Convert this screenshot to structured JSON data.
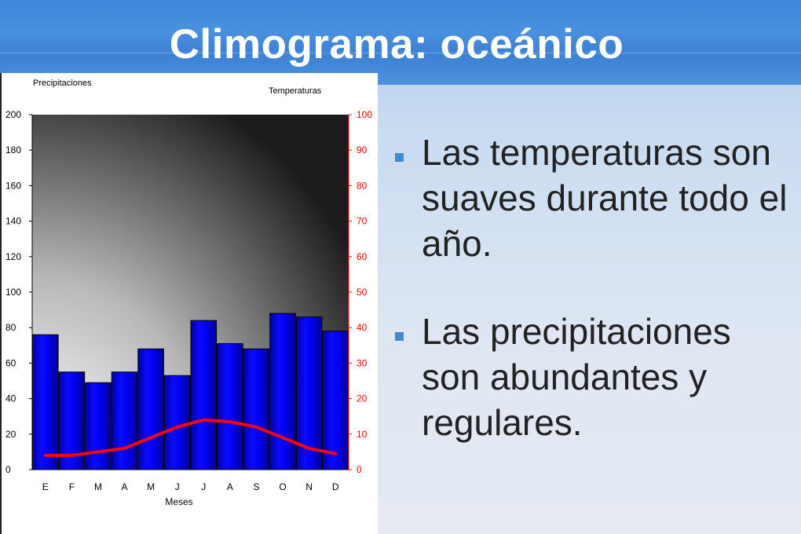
{
  "slide": {
    "title": "Climograma: oceánico"
  },
  "bullets": [
    {
      "text": "Las temperaturas son suaves durante todo el año."
    },
    {
      "text": "Las precipitaciones son abundantes y regulares."
    }
  ],
  "colors": {
    "title_bar": "#4a90e0",
    "bullet_marker": "#3f8ad6",
    "bars": "#0000ee",
    "temperature_line": "#ff0000",
    "right_axis": "#ff0000"
  },
  "chart_data": {
    "type": "bar",
    "left_axis_title": "Precipitaciones",
    "right_axis_title": "Temperaturas",
    "xlabel": "Meses",
    "categories": [
      "E",
      "F",
      "M",
      "A",
      "M",
      "J",
      "J",
      "A",
      "S",
      "O",
      "N",
      "D"
    ],
    "left_ticks": [
      0,
      20,
      40,
      60,
      80,
      100,
      120,
      140,
      160,
      180,
      200
    ],
    "right_ticks": [
      0,
      10,
      20,
      30,
      40,
      50,
      60,
      70,
      80,
      90,
      100
    ],
    "y_left_lim": [
      0,
      200
    ],
    "y_right_lim": [
      0,
      100
    ],
    "series": [
      {
        "name": "Precipitaciones",
        "type": "bar",
        "axis": "left",
        "values": [
          76,
          55,
          49,
          55,
          68,
          53,
          84,
          71,
          68,
          88,
          86,
          78
        ]
      },
      {
        "name": "Temperaturas",
        "type": "line",
        "axis": "right",
        "values": [
          4,
          4,
          5,
          6,
          9,
          12,
          14,
          13.5,
          12,
          9,
          6,
          4.5
        ]
      }
    ]
  }
}
